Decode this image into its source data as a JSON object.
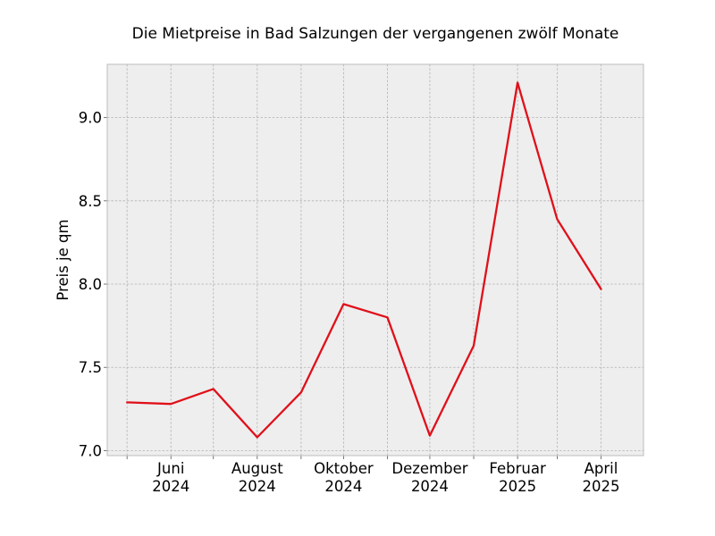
{
  "chart_data": {
    "type": "line",
    "title": "Die Mietpreise in Bad Salzungen der vergangenen zwölf Monate",
    "xlabel": "",
    "ylabel": "Preis je qm",
    "x": [
      "2024-05",
      "2024-06",
      "2024-07",
      "2024-08",
      "2024-09",
      "2024-10",
      "2024-11",
      "2024-12",
      "2025-01",
      "2025-02",
      "2025-03",
      "2025-04"
    ],
    "series": [
      {
        "values": [
          7.29,
          7.28,
          7.37,
          7.08,
          7.35,
          7.88,
          7.8,
          7.09,
          7.63,
          9.21,
          8.39,
          7.97
        ]
      }
    ],
    "xlim": [
      "2024-04-17",
      "2025-05-01"
    ],
    "ylim": [
      6.97,
      9.32
    ],
    "x_tick_labels": [
      {
        "x": "2024-06",
        "line1": "Juni",
        "line2": "2024"
      },
      {
        "x": "2024-08",
        "line1": "August",
        "line2": "2024"
      },
      {
        "x": "2024-10",
        "line1": "Oktober",
        "line2": "2024"
      },
      {
        "x": "2024-12",
        "line1": "Dezember",
        "line2": "2024"
      },
      {
        "x": "2025-02",
        "line1": "Februar",
        "line2": "2025"
      },
      {
        "x": "2025-04",
        "line1": "April",
        "line2": "2025"
      }
    ],
    "y_ticks": [
      7.0,
      7.5,
      8.0,
      8.5,
      9.0
    ],
    "y_tick_labels": [
      "7.0",
      "7.5",
      "8.0",
      "8.5",
      "9.0"
    ],
    "grid": true,
    "legend": "none",
    "colors": {
      "line": "#e0101a",
      "plot_background": "#eeeeee",
      "grid": "#b0b0b0",
      "frame": "#bcbcbc"
    }
  }
}
